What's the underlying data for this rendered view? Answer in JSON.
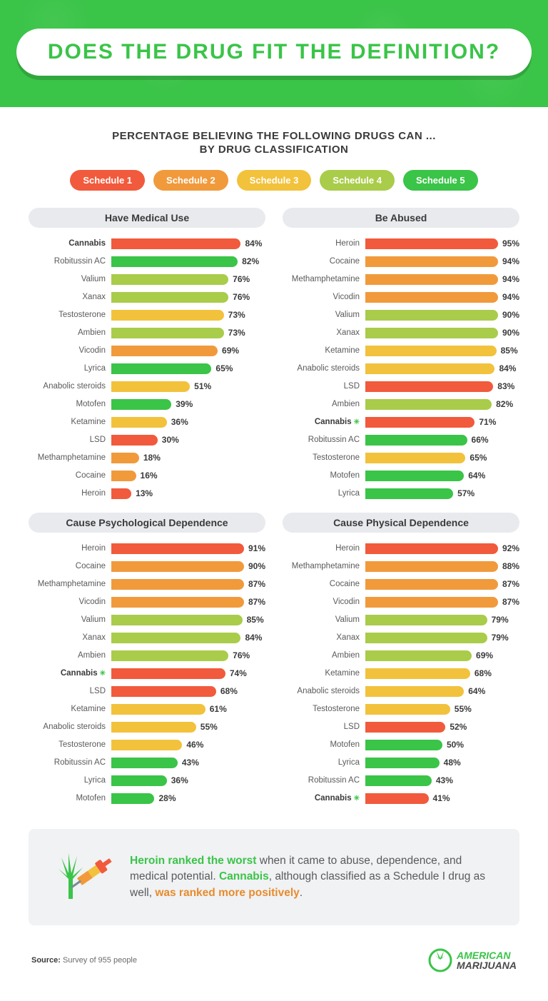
{
  "header": {
    "title": "DOES THE DRUG FIT THE DEFINITION?",
    "bg_color": "#3ac448",
    "title_color": "#3ac448"
  },
  "subtitle": {
    "line1": "PERCENTAGE BELIEVING THE FOLLOWING DRUGS CAN ...",
    "line2": "BY DRUG CLASSIFICATION"
  },
  "schedules": [
    {
      "label": "Schedule 1",
      "color": "#f15a3c"
    },
    {
      "label": "Schedule 2",
      "color": "#f19a3c"
    },
    {
      "label": "Schedule 3",
      "color": "#f2c23c"
    },
    {
      "label": "Schedule 4",
      "color": "#a9cc4a"
    },
    {
      "label": "Schedule 5",
      "color": "#3ac448"
    }
  ],
  "schedule_colors": {
    "1": "#f15a3c",
    "2": "#f19a3c",
    "3": "#f2c23c",
    "4": "#a9cc4a",
    "5": "#3ac448"
  },
  "bar_max": 100,
  "charts": [
    {
      "title": "Have Medical Use",
      "rows": [
        {
          "label": "Cannabis",
          "value": 84,
          "schedule": 1,
          "bold": true,
          "leaf": false
        },
        {
          "label": "Robitussin AC",
          "value": 82,
          "schedule": 5
        },
        {
          "label": "Valium",
          "value": 76,
          "schedule": 4
        },
        {
          "label": "Xanax",
          "value": 76,
          "schedule": 4
        },
        {
          "label": "Testosterone",
          "value": 73,
          "schedule": 3
        },
        {
          "label": "Ambien",
          "value": 73,
          "schedule": 4
        },
        {
          "label": "Vicodin",
          "value": 69,
          "schedule": 2
        },
        {
          "label": "Lyrica",
          "value": 65,
          "schedule": 5
        },
        {
          "label": "Anabolic steroids",
          "value": 51,
          "schedule": 3
        },
        {
          "label": "Motofen",
          "value": 39,
          "schedule": 5
        },
        {
          "label": "Ketamine",
          "value": 36,
          "schedule": 3
        },
        {
          "label": "LSD",
          "value": 30,
          "schedule": 1
        },
        {
          "label": "Methamphetamine",
          "value": 18,
          "schedule": 2
        },
        {
          "label": "Cocaine",
          "value": 16,
          "schedule": 2
        },
        {
          "label": "Heroin",
          "value": 13,
          "schedule": 1
        }
      ]
    },
    {
      "title": "Be Abused",
      "rows": [
        {
          "label": "Heroin",
          "value": 95,
          "schedule": 1
        },
        {
          "label": "Cocaine",
          "value": 94,
          "schedule": 2
        },
        {
          "label": "Methamphetamine",
          "value": 94,
          "schedule": 2
        },
        {
          "label": "Vicodin",
          "value": 94,
          "schedule": 2
        },
        {
          "label": "Valium",
          "value": 90,
          "schedule": 4
        },
        {
          "label": "Xanax",
          "value": 90,
          "schedule": 4
        },
        {
          "label": "Ketamine",
          "value": 85,
          "schedule": 3
        },
        {
          "label": "Anabolic steroids",
          "value": 84,
          "schedule": 3
        },
        {
          "label": "LSD",
          "value": 83,
          "schedule": 1
        },
        {
          "label": "Ambien",
          "value": 82,
          "schedule": 4
        },
        {
          "label": "Cannabis",
          "value": 71,
          "schedule": 1,
          "bold": true,
          "leaf": true
        },
        {
          "label": "Robitussin AC",
          "value": 66,
          "schedule": 5
        },
        {
          "label": "Testosterone",
          "value": 65,
          "schedule": 3
        },
        {
          "label": "Motofen",
          "value": 64,
          "schedule": 5
        },
        {
          "label": "Lyrica",
          "value": 57,
          "schedule": 5
        }
      ]
    },
    {
      "title": "Cause Psychological Dependence",
      "rows": [
        {
          "label": "Heroin",
          "value": 91,
          "schedule": 1
        },
        {
          "label": "Cocaine",
          "value": 90,
          "schedule": 2
        },
        {
          "label": "Methamphetamine",
          "value": 87,
          "schedule": 2
        },
        {
          "label": "Vicodin",
          "value": 87,
          "schedule": 2
        },
        {
          "label": "Valium",
          "value": 85,
          "schedule": 4
        },
        {
          "label": "Xanax",
          "value": 84,
          "schedule": 4
        },
        {
          "label": "Ambien",
          "value": 76,
          "schedule": 4
        },
        {
          "label": "Cannabis",
          "value": 74,
          "schedule": 1,
          "bold": true,
          "leaf": true
        },
        {
          "label": "LSD",
          "value": 68,
          "schedule": 1
        },
        {
          "label": "Ketamine",
          "value": 61,
          "schedule": 3
        },
        {
          "label": "Anabolic steroids",
          "value": 55,
          "schedule": 3
        },
        {
          "label": "Testosterone",
          "value": 46,
          "schedule": 3
        },
        {
          "label": "Robitussin AC",
          "value": 43,
          "schedule": 5
        },
        {
          "label": "Lyrica",
          "value": 36,
          "schedule": 5
        },
        {
          "label": "Motofen",
          "value": 28,
          "schedule": 5
        }
      ]
    },
    {
      "title": "Cause Physical Dependence",
      "rows": [
        {
          "label": "Heroin",
          "value": 92,
          "schedule": 1
        },
        {
          "label": "Methamphetamine",
          "value": 88,
          "schedule": 2
        },
        {
          "label": "Cocaine",
          "value": 87,
          "schedule": 2
        },
        {
          "label": "Vicodin",
          "value": 87,
          "schedule": 2
        },
        {
          "label": "Valium",
          "value": 79,
          "schedule": 4
        },
        {
          "label": "Xanax",
          "value": 79,
          "schedule": 4
        },
        {
          "label": "Ambien",
          "value": 69,
          "schedule": 4
        },
        {
          "label": "Ketamine",
          "value": 68,
          "schedule": 3
        },
        {
          "label": "Anabolic steroids",
          "value": 64,
          "schedule": 3
        },
        {
          "label": "Testosterone",
          "value": 55,
          "schedule": 3
        },
        {
          "label": "LSD",
          "value": 52,
          "schedule": 1
        },
        {
          "label": "Motofen",
          "value": 50,
          "schedule": 5
        },
        {
          "label": "Lyrica",
          "value": 48,
          "schedule": 5
        },
        {
          "label": "Robitussin AC",
          "value": 43,
          "schedule": 5
        },
        {
          "label": "Cannabis",
          "value": 41,
          "schedule": 1,
          "bold": true,
          "leaf": true
        }
      ]
    }
  ],
  "summary": {
    "parts": [
      {
        "text": "Heroin ranked the worst",
        "class": "hl-green"
      },
      {
        "text": " when it came to abuse, dependence, and medical potential. "
      },
      {
        "text": "Cannabis",
        "class": "hl-green"
      },
      {
        "text": ", although classified as a Schedule I drug as well, "
      },
      {
        "text": "was ranked more positively",
        "class": "hl-orange"
      },
      {
        "text": "."
      }
    ],
    "icon_colors": {
      "syringe": "#f19a3c",
      "plunger": "#f15a3c",
      "leaf": "#3ac448"
    }
  },
  "footer": {
    "source_label": "Source:",
    "source_value": "Survey of 955 people",
    "logo": {
      "line1": "AMERICAN",
      "line2": "MARIJUANA",
      "leaf_color": "#3ac448",
      "accent_color": "#4a4a4a"
    }
  }
}
